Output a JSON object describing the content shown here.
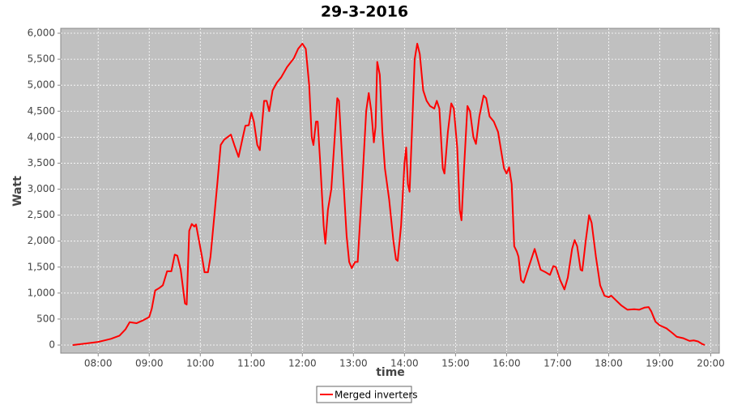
{
  "chart_data": {
    "type": "line",
    "title": "29-3-2016",
    "x_label": "time",
    "y_label": "Watt",
    "legend": "bottom",
    "grid": true,
    "xlim": [
      "07:16",
      "20:10"
    ],
    "xticks": [
      "08:00",
      "09:00",
      "10:00",
      "11:00",
      "12:00",
      "13:00",
      "14:00",
      "15:00",
      "16:00",
      "17:00",
      "18:00",
      "19:00",
      "20:00"
    ],
    "ylim": [
      -156,
      6094
    ],
    "yticks": [
      {
        "value": 0,
        "label": "0"
      },
      {
        "value": 500,
        "label": "500"
      },
      {
        "value": 1000,
        "label": "1,000"
      },
      {
        "value": 1500,
        "label": "1,500"
      },
      {
        "value": 2000,
        "label": "2,000"
      },
      {
        "value": 2500,
        "label": "2,500"
      },
      {
        "value": 3000,
        "label": "3,000"
      },
      {
        "value": 3500,
        "label": "3,500"
      },
      {
        "value": 4000,
        "label": "4,000"
      },
      {
        "value": 4500,
        "label": "4,500"
      },
      {
        "value": 5000,
        "label": "5,000"
      },
      {
        "value": 5500,
        "label": "5,500"
      },
      {
        "value": 6000,
        "label": "6,000"
      }
    ],
    "x": [
      "07:30",
      "07:45",
      "08:00",
      "08:15",
      "08:25",
      "08:32",
      "08:37",
      "08:45",
      "08:52",
      "09:00",
      "09:03",
      "09:07",
      "09:12",
      "09:16",
      "09:21",
      "09:26",
      "09:30",
      "09:33",
      "09:37",
      "09:42",
      "09:44",
      "09:47",
      "09:50",
      "09:53",
      "09:55",
      "10:02",
      "10:05",
      "10:09",
      "10:12",
      "10:20",
      "10:24",
      "10:28",
      "10:32",
      "10:36",
      "10:40",
      "10:45",
      "10:50",
      "10:53",
      "10:57",
      "11:00",
      "11:03",
      "11:07",
      "11:10",
      "11:15",
      "11:18",
      "11:21",
      "11:25",
      "11:30",
      "11:35",
      "11:42",
      "11:50",
      "11:55",
      "12:00",
      "12:04",
      "12:08",
      "12:11",
      "12:13",
      "12:16",
      "12:18",
      "12:21",
      "12:25",
      "12:27",
      "12:30",
      "12:34",
      "12:38",
      "12:41",
      "12:43",
      "12:47",
      "12:52",
      "12:55",
      "12:58",
      "13:02",
      "13:05",
      "13:10",
      "13:15",
      "13:18",
      "13:21",
      "13:24",
      "13:26",
      "13:28",
      "13:31",
      "13:34",
      "13:37",
      "13:42",
      "13:47",
      "13:50",
      "13:52",
      "13:56",
      "14:00",
      "14:02",
      "14:04",
      "14:06",
      "14:09",
      "14:12",
      "14:15",
      "14:18",
      "14:22",
      "14:26",
      "14:30",
      "14:35",
      "14:38",
      "14:41",
      "14:45",
      "14:47",
      "14:51",
      "14:55",
      "14:58",
      "15:02",
      "15:05",
      "15:07",
      "15:10",
      "15:14",
      "15:17",
      "15:21",
      "15:24",
      "15:28",
      "15:33",
      "15:36",
      "15:40",
      "15:45",
      "15:50",
      "15:53",
      "15:57",
      "16:00",
      "16:03",
      "16:06",
      "16:09",
      "16:12",
      "16:14",
      "16:17",
      "16:20",
      "16:24",
      "16:29",
      "16:33",
      "16:40",
      "16:46",
      "16:51",
      "16:55",
      "16:58",
      "17:03",
      "17:08",
      "17:12",
      "17:17",
      "17:20",
      "17:23",
      "17:27",
      "17:29",
      "17:33",
      "17:37",
      "17:40",
      "17:45",
      "17:50",
      "17:55",
      "18:00",
      "18:03",
      "18:08",
      "18:15",
      "18:22",
      "18:30",
      "18:36",
      "18:42",
      "18:47",
      "18:50",
      "18:55",
      "19:00",
      "19:08",
      "19:15",
      "19:20",
      "19:28",
      "19:35",
      "19:40",
      "19:45",
      "19:50",
      "19:53"
    ],
    "series": [
      {
        "name": "Merged inverters",
        "color": "#ff0000",
        "values": [
          0,
          30,
          60,
          120,
          180,
          300,
          440,
          420,
          470,
          540,
          700,
          1050,
          1100,
          1150,
          1420,
          1420,
          1740,
          1720,
          1450,
          800,
          780,
          2200,
          2330,
          2280,
          2320,
          1700,
          1400,
          1400,
          1700,
          3100,
          3850,
          3950,
          4000,
          4050,
          3850,
          3620,
          4000,
          4220,
          4230,
          4470,
          4300,
          3850,
          3750,
          4700,
          4700,
          4500,
          4900,
          5050,
          5150,
          5350,
          5520,
          5700,
          5800,
          5700,
          5000,
          4000,
          3850,
          4300,
          4300,
          3500,
          2300,
          1950,
          2600,
          3000,
          4000,
          4750,
          4700,
          3500,
          2100,
          1600,
          1480,
          1600,
          1600,
          3000,
          4500,
          4850,
          4500,
          3900,
          4200,
          5450,
          5200,
          4100,
          3400,
          2800,
          2000,
          1650,
          1620,
          2300,
          3500,
          3800,
          3100,
          2950,
          4200,
          5500,
          5800,
          5600,
          4900,
          4700,
          4600,
          4550,
          4700,
          4550,
          3400,
          3300,
          4100,
          4650,
          4550,
          3800,
          2600,
          2400,
          3400,
          4600,
          4500,
          4000,
          3870,
          4400,
          4800,
          4750,
          4400,
          4300,
          4100,
          3800,
          3400,
          3300,
          3420,
          3100,
          1900,
          1800,
          1700,
          1250,
          1200,
          1400,
          1650,
          1850,
          1450,
          1400,
          1350,
          1520,
          1500,
          1250,
          1070,
          1300,
          1850,
          2020,
          1900,
          1450,
          1430,
          2000,
          2500,
          2350,
          1700,
          1150,
          950,
          920,
          950,
          870,
          760,
          680,
          690,
          680,
          720,
          730,
          650,
          450,
          380,
          320,
          230,
          160,
          130,
          80,
          90,
          70,
          20,
          0
        ]
      }
    ]
  }
}
